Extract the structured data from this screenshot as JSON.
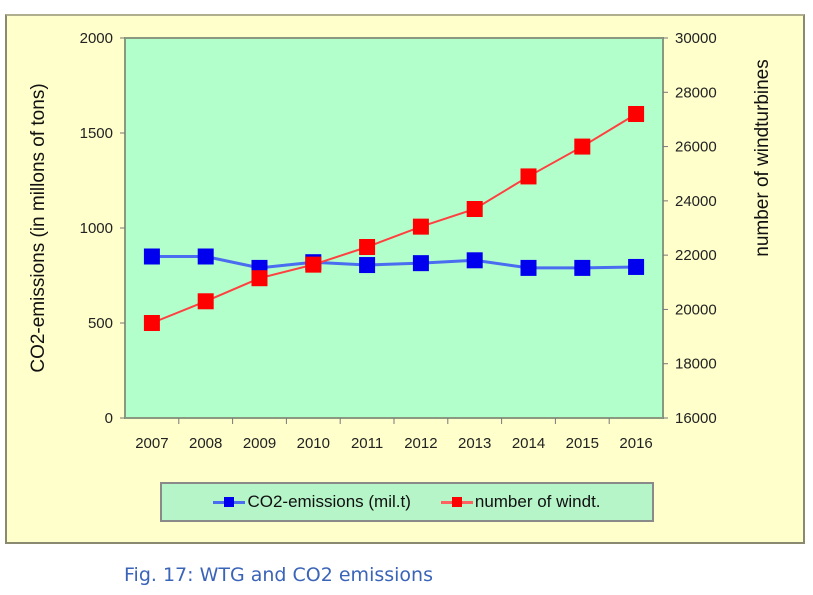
{
  "chart_data": {
    "type": "line",
    "categories": [
      "2007",
      "2008",
      "2009",
      "2010",
      "2011",
      "2012",
      "2013",
      "2014",
      "2015",
      "2016"
    ],
    "series": [
      {
        "name": "CO2-emissions (mil.t)",
        "axis": "left",
        "color": "#0000ee",
        "values": [
          850,
          850,
          790,
          820,
          805,
          815,
          830,
          790,
          790,
          795
        ]
      },
      {
        "name": "number of windt.",
        "axis": "right",
        "color": "#ff0000",
        "values": [
          19500,
          20300,
          21150,
          21650,
          22300,
          23050,
          23700,
          24900,
          26000,
          27200
        ]
      }
    ],
    "ylabel": "CO2-emissions (in millons of tons)",
    "y2label": "number of windturbines",
    "ylim": [
      0,
      2000
    ],
    "yticks": [
      "0",
      "500",
      "1000",
      "1500",
      "2000"
    ],
    "y2lim": [
      16000,
      30000
    ],
    "y2ticks": [
      "16000",
      "18000",
      "20000",
      "22000",
      "24000",
      "26000",
      "28000",
      "30000"
    ],
    "plot_background": "#b3ffcc",
    "frame_background": "#ffffcc",
    "grid": false,
    "legend_position": "bottom"
  },
  "caption": "Fig. 17: WTG and CO2 emissions"
}
